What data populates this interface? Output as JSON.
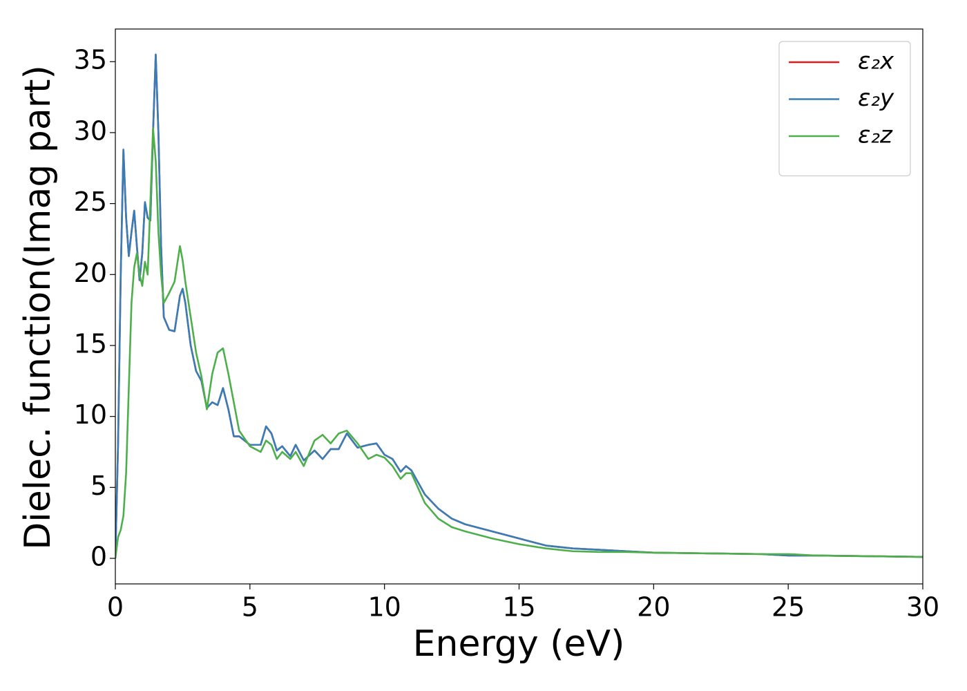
{
  "chart_data": {
    "type": "line",
    "xlabel": "Energy (eV)",
    "ylabel": "Dielec. function(Imag part)",
    "x": [
      0,
      0.1,
      0.2,
      0.3,
      0.4,
      0.5,
      0.6,
      0.7,
      0.8,
      0.9,
      1.0,
      1.1,
      1.2,
      1.3,
      1.4,
      1.5,
      1.6,
      1.7,
      1.8,
      2.0,
      2.2,
      2.4,
      2.5,
      2.6,
      2.8,
      3.0,
      3.2,
      3.4,
      3.6,
      3.8,
      4.0,
      4.2,
      4.4,
      4.6,
      5.0,
      5.4,
      5.6,
      5.8,
      6.0,
      6.2,
      6.5,
      6.7,
      7.0,
      7.4,
      7.7,
      8.0,
      8.3,
      8.6,
      9.0,
      9.4,
      9.7,
      10.0,
      10.3,
      10.6,
      10.8,
      11.0,
      11.5,
      12,
      12.5,
      13,
      14,
      15,
      16,
      17,
      18,
      19,
      20,
      22,
      24,
      25,
      26,
      28,
      30
    ],
    "series": [
      {
        "name": "ε₂x",
        "color": "#e41a1c",
        "values": [
          0,
          8,
          20,
          28.8,
          24,
          21.3,
          23,
          24.5,
          22,
          19.6,
          21.5,
          25.1,
          24,
          23.8,
          30,
          35.5,
          30,
          22,
          17,
          16.1,
          16,
          18.5,
          19,
          18,
          15,
          13.2,
          12.5,
          10.6,
          11,
          10.8,
          12,
          10.5,
          8.6,
          8.6,
          8,
          8,
          9.3,
          8.8,
          7.6,
          7.9,
          7.2,
          8,
          6.9,
          7.6,
          7,
          7.7,
          7.7,
          8.8,
          7.8,
          8,
          8.1,
          7.3,
          7,
          6.1,
          6.5,
          6.2,
          4.5,
          3.5,
          2.8,
          2.4,
          1.9,
          1.4,
          0.9,
          0.7,
          0.6,
          0.5,
          0.4,
          0.35,
          0.3,
          0.2,
          0.2,
          0.15,
          0.1
        ]
      },
      {
        "name": "ε₂y",
        "color": "#377eb8",
        "values": [
          0,
          8,
          20,
          28.8,
          24,
          21.3,
          23,
          24.5,
          22,
          19.6,
          21.5,
          25.1,
          24,
          23.8,
          30,
          35.5,
          30,
          22,
          17,
          16.1,
          16,
          18.5,
          19,
          18,
          15,
          13.2,
          12.5,
          10.6,
          11,
          10.8,
          12,
          10.5,
          8.6,
          8.6,
          8,
          8,
          9.3,
          8.8,
          7.6,
          7.9,
          7.2,
          8,
          6.9,
          7.6,
          7,
          7.7,
          7.7,
          8.8,
          7.8,
          8,
          8.1,
          7.3,
          7,
          6.1,
          6.5,
          6.2,
          4.5,
          3.5,
          2.8,
          2.4,
          1.9,
          1.4,
          0.9,
          0.7,
          0.6,
          0.5,
          0.4,
          0.35,
          0.3,
          0.2,
          0.2,
          0.15,
          0.1
        ]
      },
      {
        "name": "ε₂z",
        "color": "#4daf4a",
        "values": [
          0,
          1.5,
          2,
          3,
          6,
          12,
          18,
          20.5,
          21.5,
          20,
          19.2,
          20.9,
          20,
          25,
          30.3,
          28,
          23,
          20,
          18,
          18.7,
          19.5,
          22,
          21,
          19.5,
          17,
          14.5,
          12.8,
          10.5,
          13,
          14.5,
          14.8,
          13,
          11,
          9,
          7.9,
          7.5,
          8.3,
          8,
          7,
          7.5,
          7,
          7.5,
          6.5,
          8.3,
          8.7,
          8.1,
          8.8,
          9,
          8.1,
          7,
          7.3,
          7.1,
          6.5,
          5.6,
          6,
          6,
          3.9,
          2.8,
          2.2,
          1.9,
          1.4,
          1,
          0.7,
          0.5,
          0.45,
          0.45,
          0.4,
          0.35,
          0.3,
          0.3,
          0.2,
          0.15,
          0.1
        ]
      }
    ],
    "xlim": [
      0,
      30
    ],
    "xticks": [
      0,
      5,
      10,
      15,
      20,
      25,
      30
    ],
    "ylim": [
      -1.8,
      37.3
    ],
    "yticks": [
      0,
      5,
      10,
      15,
      20,
      25,
      30,
      35
    ],
    "legend": "upper right",
    "grid": false
  }
}
